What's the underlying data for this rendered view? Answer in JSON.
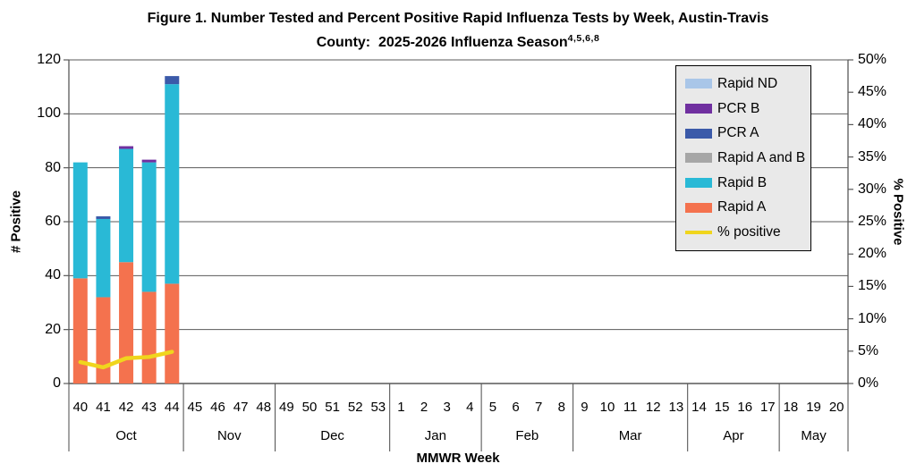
{
  "figure": {
    "title_line1": "Figure 1. Number Tested and Percent Positive Rapid Influenza Tests by Week, Austin-Travis",
    "title_line2": "County:  2025-2026 Influenza Season",
    "title_superscript": "4,5,6,8"
  },
  "chart_data": {
    "type": "bar",
    "title": "Figure 1. Number Tested and Percent Positive Rapid Influenza Tests by Week, Austin-Travis County: 2025-2026 Influenza Season",
    "xlabel": "MMWR Week",
    "ylabel_left": "# Positive",
    "ylabel_right": "% Positive",
    "left_axis": {
      "min": 0,
      "max": 120,
      "step": 20
    },
    "right_axis": {
      "min": 0,
      "max": 50,
      "step": 5,
      "suffix": "%"
    },
    "categories": [
      40,
      41,
      42,
      43,
      44,
      45,
      46,
      47,
      48,
      49,
      50,
      51,
      52,
      53,
      1,
      2,
      3,
      4,
      5,
      6,
      7,
      8,
      9,
      10,
      11,
      12,
      13,
      14,
      15,
      16,
      17,
      18,
      19,
      20
    ],
    "month_groups": [
      {
        "label": "Oct",
        "count": 5
      },
      {
        "label": "Nov",
        "count": 4
      },
      {
        "label": "Dec",
        "count": 5
      },
      {
        "label": "Jan",
        "count": 4
      },
      {
        "label": "Feb",
        "count": 4
      },
      {
        "label": "Mar",
        "count": 5
      },
      {
        "label": "Apr",
        "count": 4
      },
      {
        "label": "May",
        "count": 3
      }
    ],
    "series": [
      {
        "name": "Rapid A",
        "values": [
          39,
          32,
          45,
          34,
          37
        ]
      },
      {
        "name": "Rapid B",
        "values": [
          43,
          29,
          42,
          48,
          74
        ]
      },
      {
        "name": "Rapid A and B",
        "values": [
          0,
          0,
          0,
          0,
          0
        ]
      },
      {
        "name": "PCR A",
        "values": [
          0,
          1,
          0,
          0,
          3
        ]
      },
      {
        "name": "PCR B",
        "values": [
          0,
          0,
          1,
          1,
          0
        ]
      },
      {
        "name": "Rapid ND",
        "values": [
          0,
          0,
          0,
          0,
          0
        ]
      }
    ],
    "line": {
      "name": "% positive",
      "values": [
        3.3,
        2.5,
        3.9,
        4.1,
        4.9
      ]
    },
    "legend_order": [
      "Rapid ND",
      "PCR B",
      "PCR A",
      "Rapid A and B",
      "Rapid B",
      "Rapid A",
      "% positive"
    ],
    "colors": {
      "Rapid ND": "#a9c6e8",
      "PCR B": "#7030a0",
      "PCR A": "#3b5aa9",
      "Rapid A and B": "#a6a6a6",
      "Rapid B": "#29b9d6",
      "Rapid A": "#f4724e",
      "% positive": "#f0d51d",
      "gridline": "#595959",
      "axis_text": "#000000",
      "legend_bg": "#e9e9e9"
    },
    "layout": {
      "grid": "horizontal-only",
      "legend_position": "top-right-inside"
    }
  }
}
